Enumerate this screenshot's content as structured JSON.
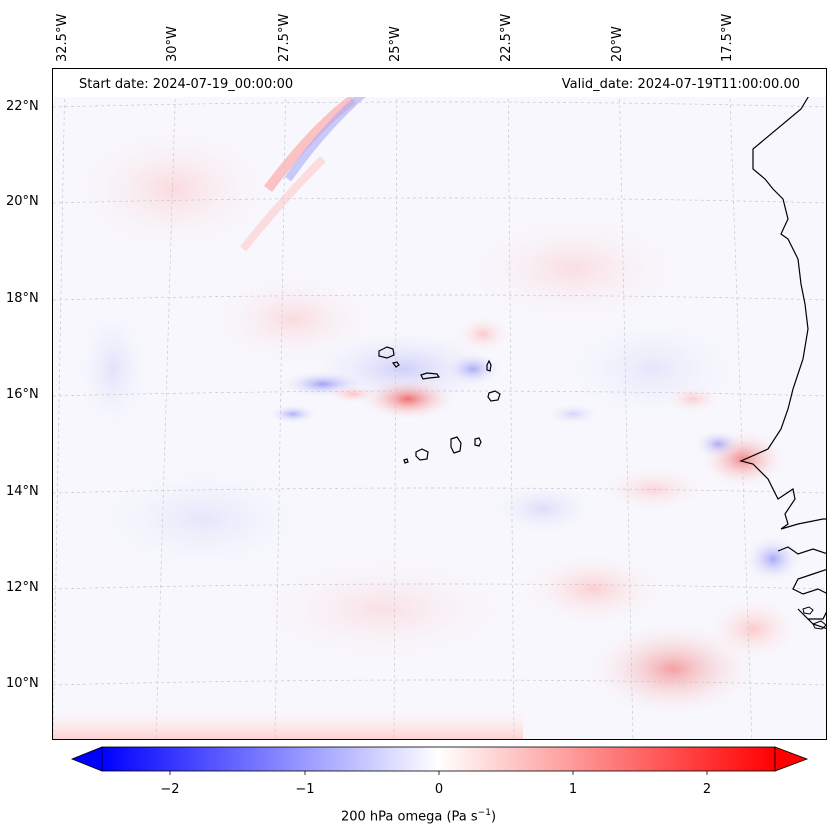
{
  "map": {
    "start_date": "Start date: 2024-07-19_00:00:00",
    "valid_date": "Valid_date: 2024-07-19T11:00:00.00",
    "lon_labels": [
      "32.5°W",
      "30°W",
      "27.5°W",
      "25°W",
      "22.5°W",
      "20°W",
      "17.5°W"
    ],
    "lat_labels": [
      "22°N",
      "20°N",
      "18°N",
      "16°N",
      "14°N",
      "12°N",
      "10°N"
    ],
    "colorbar": {
      "ticks": [
        "−2",
        "−1",
        "0",
        "1",
        "2"
      ],
      "label": "200 hPa omega (Pa s",
      "label_sup": "−1",
      "label_end": ")",
      "min_color": "#0000ff",
      "mid_color": "#ffffff",
      "max_color": "#ff0000"
    },
    "colors": {
      "coast": "#000000",
      "grid": "#c8c8c8",
      "background": "#f7f7fd"
    }
  }
}
